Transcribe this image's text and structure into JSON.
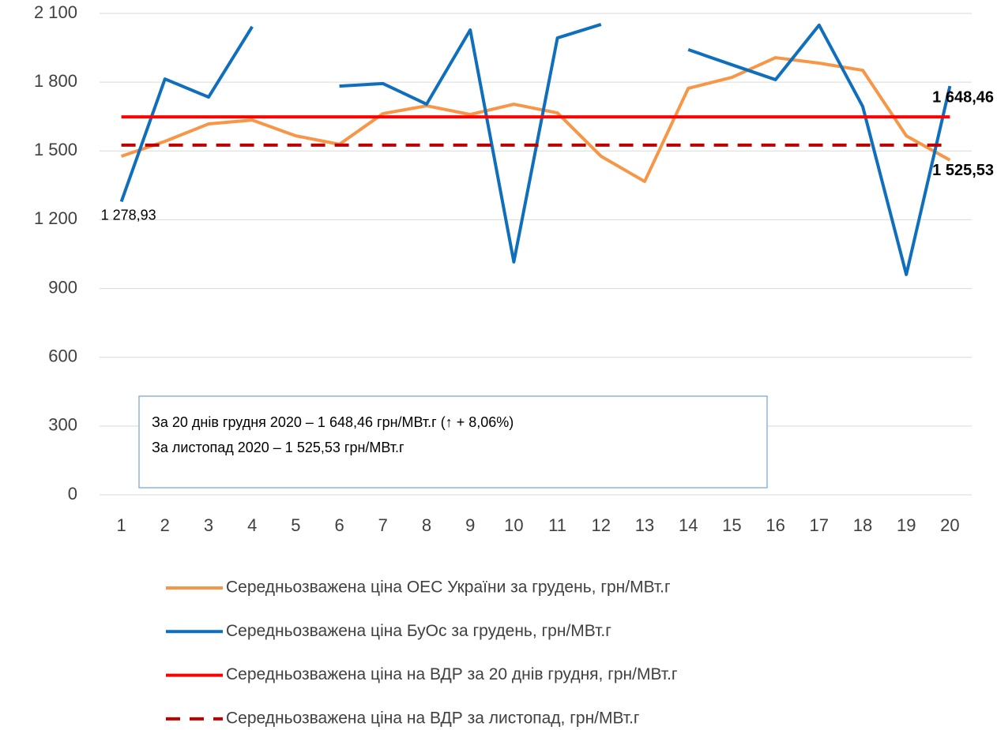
{
  "chart_data": {
    "type": "line",
    "categories": [
      "1",
      "2",
      "3",
      "4",
      "5",
      "6",
      "7",
      "8",
      "9",
      "10",
      "11",
      "12",
      "13",
      "14",
      "15",
      "16",
      "17",
      "18",
      "19",
      "20"
    ],
    "series": [
      {
        "name": "Середньозважена ціна ОЕС України за грудень, грн/МВт.г",
        "color": "#f79646",
        "values": [
          1477,
          1542,
          1618,
          1635,
          1566,
          1529,
          1663,
          1697,
          1659,
          1704,
          1666,
          1477,
          1367,
          1773,
          1821,
          1907,
          1883,
          1852,
          1566,
          1460
        ]
      },
      {
        "name": "Середньозважена ціна БуОс за грудень, грн/МВт.г",
        "color": "#0f6fbc",
        "values": [
          1278.93,
          1814,
          1735,
          2042,
          null,
          1783,
          1794,
          1704,
          2028,
          1016,
          1993,
          2052,
          null,
          1942,
          1876,
          1811,
          2049,
          1694,
          961,
          1783
        ],
        "value_labels": [
          "1 278,93",
          null,
          null,
          null,
          null,
          null,
          null,
          null,
          null,
          null,
          null,
          null,
          null,
          null,
          null,
          null,
          null,
          null,
          null,
          null
        ]
      },
      {
        "name": "Середньозважена ціна на ВДР за 20 днів грудня, грн/МВт.г",
        "color": "#ff0000",
        "value": 1648.46,
        "value_label": "1 648,46"
      },
      {
        "name": "Середньозважена ціна на ВДР за листопад, грн/МВт.г",
        "color": "#c00000",
        "dashed": true,
        "value": 1525.53,
        "value_label": "1 525,53"
      }
    ],
    "annotations": [
      "За 20 днів грудня 2020 – 1 648,46 грн/МВт.г (↑ + 8,06%)",
      "За листопад 2020 – 1 525,53 грн/МВт.г"
    ],
    "ylim": [
      0,
      2100
    ],
    "yticks": [
      0,
      300,
      600,
      900,
      {
        "value": 1200,
        "label": "1 200"
      },
      {
        "value": 1500,
        "label": "1 500"
      },
      {
        "value": 1800,
        "label": "1 800"
      },
      {
        "value": 2100,
        "label": "2 100"
      }
    ],
    "grid": true,
    "legend": "bottom"
  }
}
